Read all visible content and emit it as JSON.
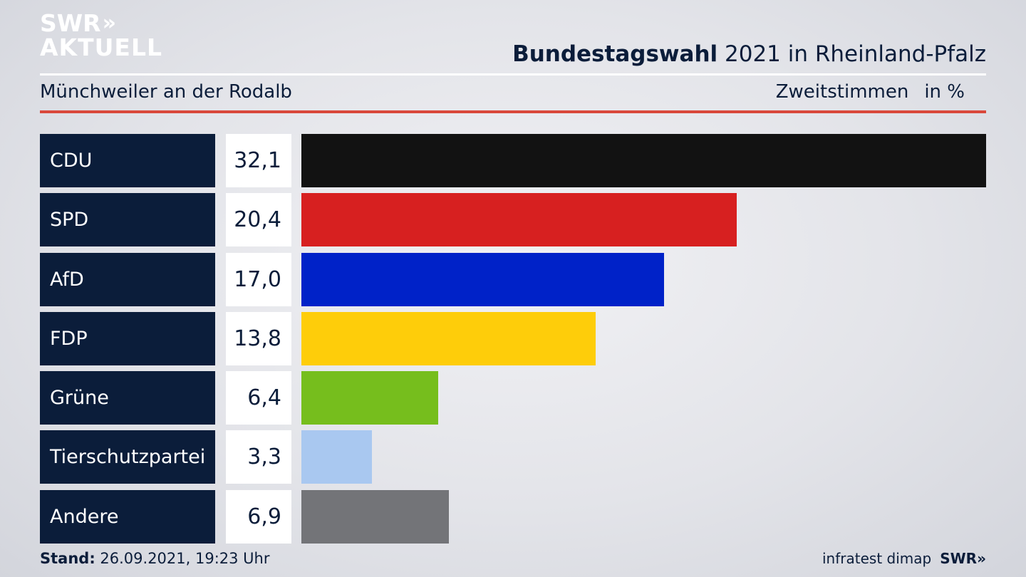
{
  "logo": {
    "line1": "SWR",
    "chevrons": "»",
    "line2": "AKTUELL"
  },
  "header": {
    "title_bold": "Bundestagswahl",
    "title_rest": " 2021 in Rheinland-Pfalz",
    "subtitle": "Münchweiler an der Rodalb",
    "measure": "Zweitstimmen",
    "unit": "in %"
  },
  "chart_data": {
    "type": "bar",
    "orientation": "horizontal",
    "title": "Bundestagswahl 2021 in Rheinland-Pfalz",
    "subtitle": "Münchweiler an der Rodalb",
    "xlabel": "",
    "ylabel": "",
    "unit": "in %",
    "categories": [
      "CDU",
      "SPD",
      "AfD",
      "FDP",
      "Grüne",
      "Tierschutzpartei",
      "Andere"
    ],
    "value_labels": [
      "32,1",
      "20,4",
      "17,0",
      "13,8",
      "6,4",
      "3,3",
      "6,9"
    ],
    "values": [
      32.1,
      20.4,
      17.0,
      13.8,
      6.4,
      3.3,
      6.9
    ],
    "colors": [
      "#121212",
      "#d72020",
      "#0022c8",
      "#fecd0a",
      "#76be1d",
      "#a9c8f0",
      "#737478"
    ],
    "xlim": [
      0,
      32.1
    ],
    "grid": false,
    "legend": "none"
  },
  "footer": {
    "stand_label": "Stand:",
    "stand_value": " 26.09.2021, 19:23 Uhr",
    "source": "infratest dimap",
    "brand": "SWR»"
  }
}
